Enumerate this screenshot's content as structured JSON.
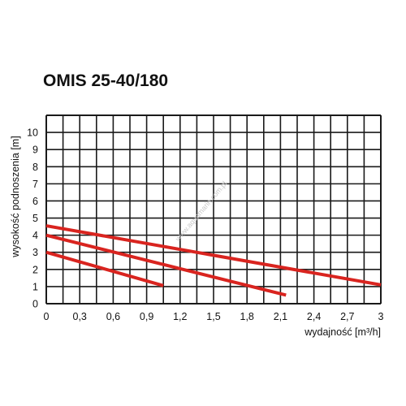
{
  "title": "OMIS 25-40/180",
  "watermark": "www.aquamarin.com.pl",
  "colors": {
    "curve": "#d9241f",
    "grid": "#1a1a1a",
    "text": "#111111"
  },
  "chart_data": {
    "type": "line",
    "title": "OMIS 25-40/180",
    "xlabel": "wydajność [m³/h]",
    "ylabel": "wysokość podnoszenia [m]",
    "xlim": [
      0,
      3
    ],
    "ylim": [
      0,
      11
    ],
    "x_ticks": [
      "0",
      "0,3",
      "0,6",
      "0,9",
      "1,2",
      "1,5",
      "1,8",
      "2,1",
      "2,4",
      "2,7",
      "3"
    ],
    "x_tick_values": [
      0,
      0.3,
      0.6,
      0.9,
      1.2,
      1.5,
      1.8,
      2.1,
      2.4,
      2.7,
      3.0
    ],
    "y_ticks": [
      "0",
      "1",
      "2",
      "3",
      "4",
      "5",
      "6",
      "7",
      "8",
      "9",
      "10"
    ],
    "y_tick_values": [
      0,
      1,
      2,
      3,
      4,
      5,
      6,
      7,
      8,
      9,
      10
    ],
    "grid": true,
    "series": [
      {
        "x": [
          0,
          1.05
        ],
        "y": [
          3.0,
          1.05
        ]
      },
      {
        "x": [
          0,
          2.15
        ],
        "y": [
          4.0,
          0.5
        ]
      },
      {
        "x": [
          0,
          3.0
        ],
        "y": [
          4.55,
          1.1
        ]
      }
    ]
  }
}
